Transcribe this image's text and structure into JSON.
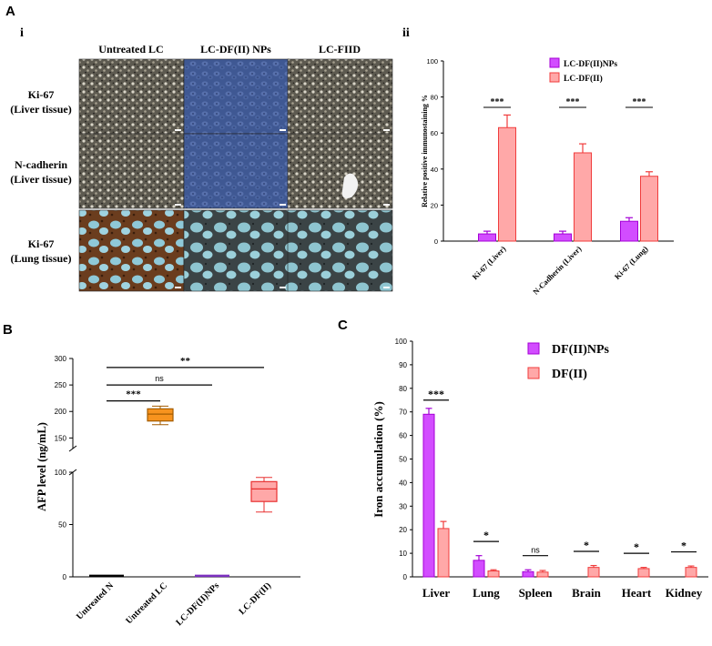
{
  "figure": {
    "panel_labels": {
      "A": "A",
      "Ai": "i",
      "Aii": "ii",
      "B": "B",
      "C": "C"
    },
    "colors": {
      "magenta": "#d24dff",
      "magenta_edge": "#a400d6",
      "salmon": "#ffa8a8",
      "salmon_edge": "#f03c3c",
      "orange": "#f7931e",
      "orange_edge": "#a35c00",
      "purple_line": "#7b2fbf",
      "red_line": "#e83030"
    }
  },
  "micrograph_grid": {
    "column_headers": [
      "Untreated LC",
      "LC-DF(II) NPs",
      "LC-FIID"
    ],
    "row_labels": [
      {
        "line1": "Ki-67",
        "line2": "(Liver tissue)"
      },
      {
        "line1": "N-cadherin",
        "line2": "(Liver tissue)"
      },
      {
        "line1": "Ki-67",
        "line2": "(Lung tissue)"
      }
    ],
    "tile_styles": [
      "liver-dark",
      "liver-blue",
      "liver-dark",
      "liver-dark",
      "liver-blue",
      "liver-dark-vessel",
      "lung-brown",
      "lung-pale",
      "lung-pale"
    ]
  },
  "chart_data": [
    {
      "id": "Aii",
      "type": "bar",
      "title": "",
      "xlabel": "",
      "ylabel": "Relative positive immunostaining %",
      "categories": [
        "Ki-67 (Liver)",
        "N-Cadherin (Liver)",
        "Ki-67 (Lung)"
      ],
      "series": [
        {
          "name": "LC-DF(II)NPs",
          "values": [
            4,
            4,
            11
          ],
          "errors": [
            1.5,
            1.5,
            2
          ]
        },
        {
          "name": "LC-DF(II)",
          "values": [
            63,
            49,
            36
          ],
          "errors": [
            7,
            5,
            2.5
          ]
        }
      ],
      "ylim": [
        0,
        100
      ],
      "yticks": [
        0,
        20,
        40,
        60,
        80,
        100
      ],
      "significance": [
        "***",
        "***",
        "***"
      ],
      "legend_position": "top-right"
    },
    {
      "id": "B",
      "type": "box",
      "title": "",
      "xlabel": "",
      "ylabel": "AFP level (ng/mL)",
      "categories": [
        "Untreated N",
        "Untreated LC",
        "LC-DF(II)NPs",
        "LC-DF(II)"
      ],
      "boxes": [
        {
          "min": 1,
          "q1": 1,
          "median": 1,
          "q3": 1,
          "max": 1
        },
        {
          "min": 175,
          "q1": 182,
          "median": 195,
          "q3": 205,
          "max": 210
        },
        {
          "min": 1,
          "q1": 1,
          "median": 1,
          "q3": 1,
          "max": 1
        },
        {
          "min": 62,
          "q1": 72,
          "median": 84,
          "q3": 91,
          "max": 95
        }
      ],
      "axis_break": {
        "lower": [
          0,
          100
        ],
        "upper": [
          130,
          300
        ]
      },
      "yticks_lower": [
        0,
        50,
        100
      ],
      "yticks_upper": [
        150,
        200,
        250,
        300
      ],
      "comparisons": [
        {
          "from": 0,
          "to": 1,
          "label": "***",
          "y": 220
        },
        {
          "from": 0,
          "to": 2,
          "label": "ns",
          "y": 250
        },
        {
          "from": 0,
          "to": 3,
          "label": "**",
          "y": 283
        }
      ]
    },
    {
      "id": "C",
      "type": "bar",
      "title": "",
      "xlabel": "",
      "ylabel": "Iron accumulation (%)",
      "categories": [
        "Liver",
        "Lung",
        "Spleen",
        "Brain",
        "Heart",
        "Kidney"
      ],
      "series": [
        {
          "name": "DF(II)NPs",
          "values": [
            69,
            7,
            2.2,
            0,
            0,
            0
          ],
          "errors": [
            2.5,
            2,
            0.8,
            0,
            0,
            0
          ]
        },
        {
          "name": "DF(II)",
          "values": [
            20.5,
            2.5,
            2,
            4,
            3.5,
            4
          ],
          "errors": [
            3,
            0.5,
            0.7,
            0.8,
            0.5,
            0.6
          ]
        }
      ],
      "ylim": [
        0,
        100
      ],
      "yticks": [
        0,
        10,
        20,
        30,
        40,
        50,
        60,
        70,
        80,
        90,
        100
      ],
      "significance": [
        "***",
        "*",
        "ns",
        "*",
        "*",
        "*"
      ],
      "legend_position": "top-right"
    }
  ]
}
